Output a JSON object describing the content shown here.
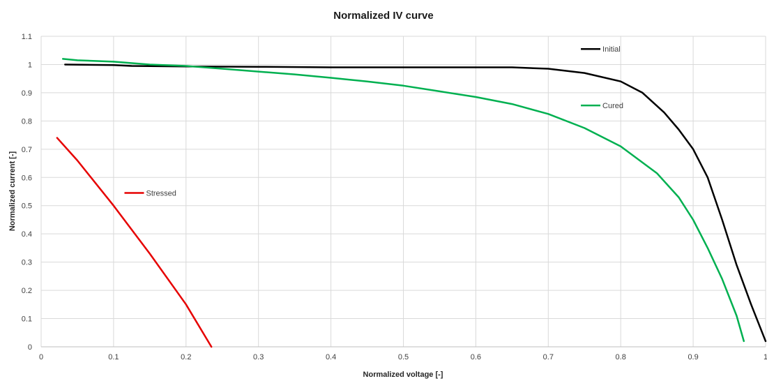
{
  "chart_data": {
    "type": "line",
    "title": "Normalized IV curve",
    "xlabel": "Normalized voltage [-]",
    "ylabel": "Normalized current [-]",
    "xlim": [
      0,
      1
    ],
    "ylim": [
      0,
      1.1
    ],
    "xticks": [
      "0",
      "0.1",
      "0.2",
      "0.3",
      "0.4",
      "0.5",
      "0.6",
      "0.7",
      "0.8",
      "0.9",
      "1"
    ],
    "yticks": [
      "0",
      "0.1",
      "0.2",
      "0.3",
      "0.4",
      "0.5",
      "0.6",
      "0.7",
      "0.8",
      "0.9",
      "1",
      "1.1"
    ],
    "grid": true,
    "legend": "inline labels next to curves",
    "series": [
      {
        "name": "Initial",
        "color": "#000000",
        "x": [
          0.033,
          0.1,
          0.125,
          0.2,
          0.3,
          0.4,
          0.5,
          0.6,
          0.65,
          0.7,
          0.75,
          0.8,
          0.83,
          0.86,
          0.88,
          0.9,
          0.92,
          0.94,
          0.96,
          0.98,
          1.0
        ],
        "y": [
          1.0,
          0.998,
          0.995,
          0.993,
          0.992,
          0.99,
          0.99,
          0.99,
          0.99,
          0.985,
          0.97,
          0.94,
          0.9,
          0.83,
          0.77,
          0.7,
          0.6,
          0.45,
          0.29,
          0.15,
          0.02
        ]
      },
      {
        "name": "Cured",
        "color": "#00b050",
        "x": [
          0.03,
          0.05,
          0.1,
          0.15,
          0.2,
          0.25,
          0.3,
          0.35,
          0.4,
          0.45,
          0.5,
          0.55,
          0.6,
          0.65,
          0.7,
          0.75,
          0.8,
          0.85,
          0.88,
          0.9,
          0.92,
          0.94,
          0.96,
          0.97
        ],
        "y": [
          1.02,
          1.015,
          1.01,
          1.0,
          0.995,
          0.985,
          0.975,
          0.965,
          0.953,
          0.94,
          0.925,
          0.905,
          0.885,
          0.86,
          0.825,
          0.775,
          0.71,
          0.615,
          0.53,
          0.45,
          0.35,
          0.24,
          0.11,
          0.02
        ]
      },
      {
        "name": "Stressed",
        "color": "#e60000",
        "x": [
          0.022,
          0.05,
          0.1,
          0.15,
          0.2,
          0.235
        ],
        "y": [
          0.74,
          0.66,
          0.5,
          0.33,
          0.15,
          0.0
        ]
      }
    ],
    "annotations": [
      {
        "text": "Initial",
        "series": "Initial",
        "anchor_x": 0.745,
        "anchor_y": 1.055
      },
      {
        "text": "Cured",
        "series": "Cured",
        "anchor_x": 0.745,
        "anchor_y": 0.855
      },
      {
        "text": "Stressed",
        "series": "Stressed",
        "anchor_x": 0.115,
        "anchor_y": 0.545
      }
    ]
  }
}
